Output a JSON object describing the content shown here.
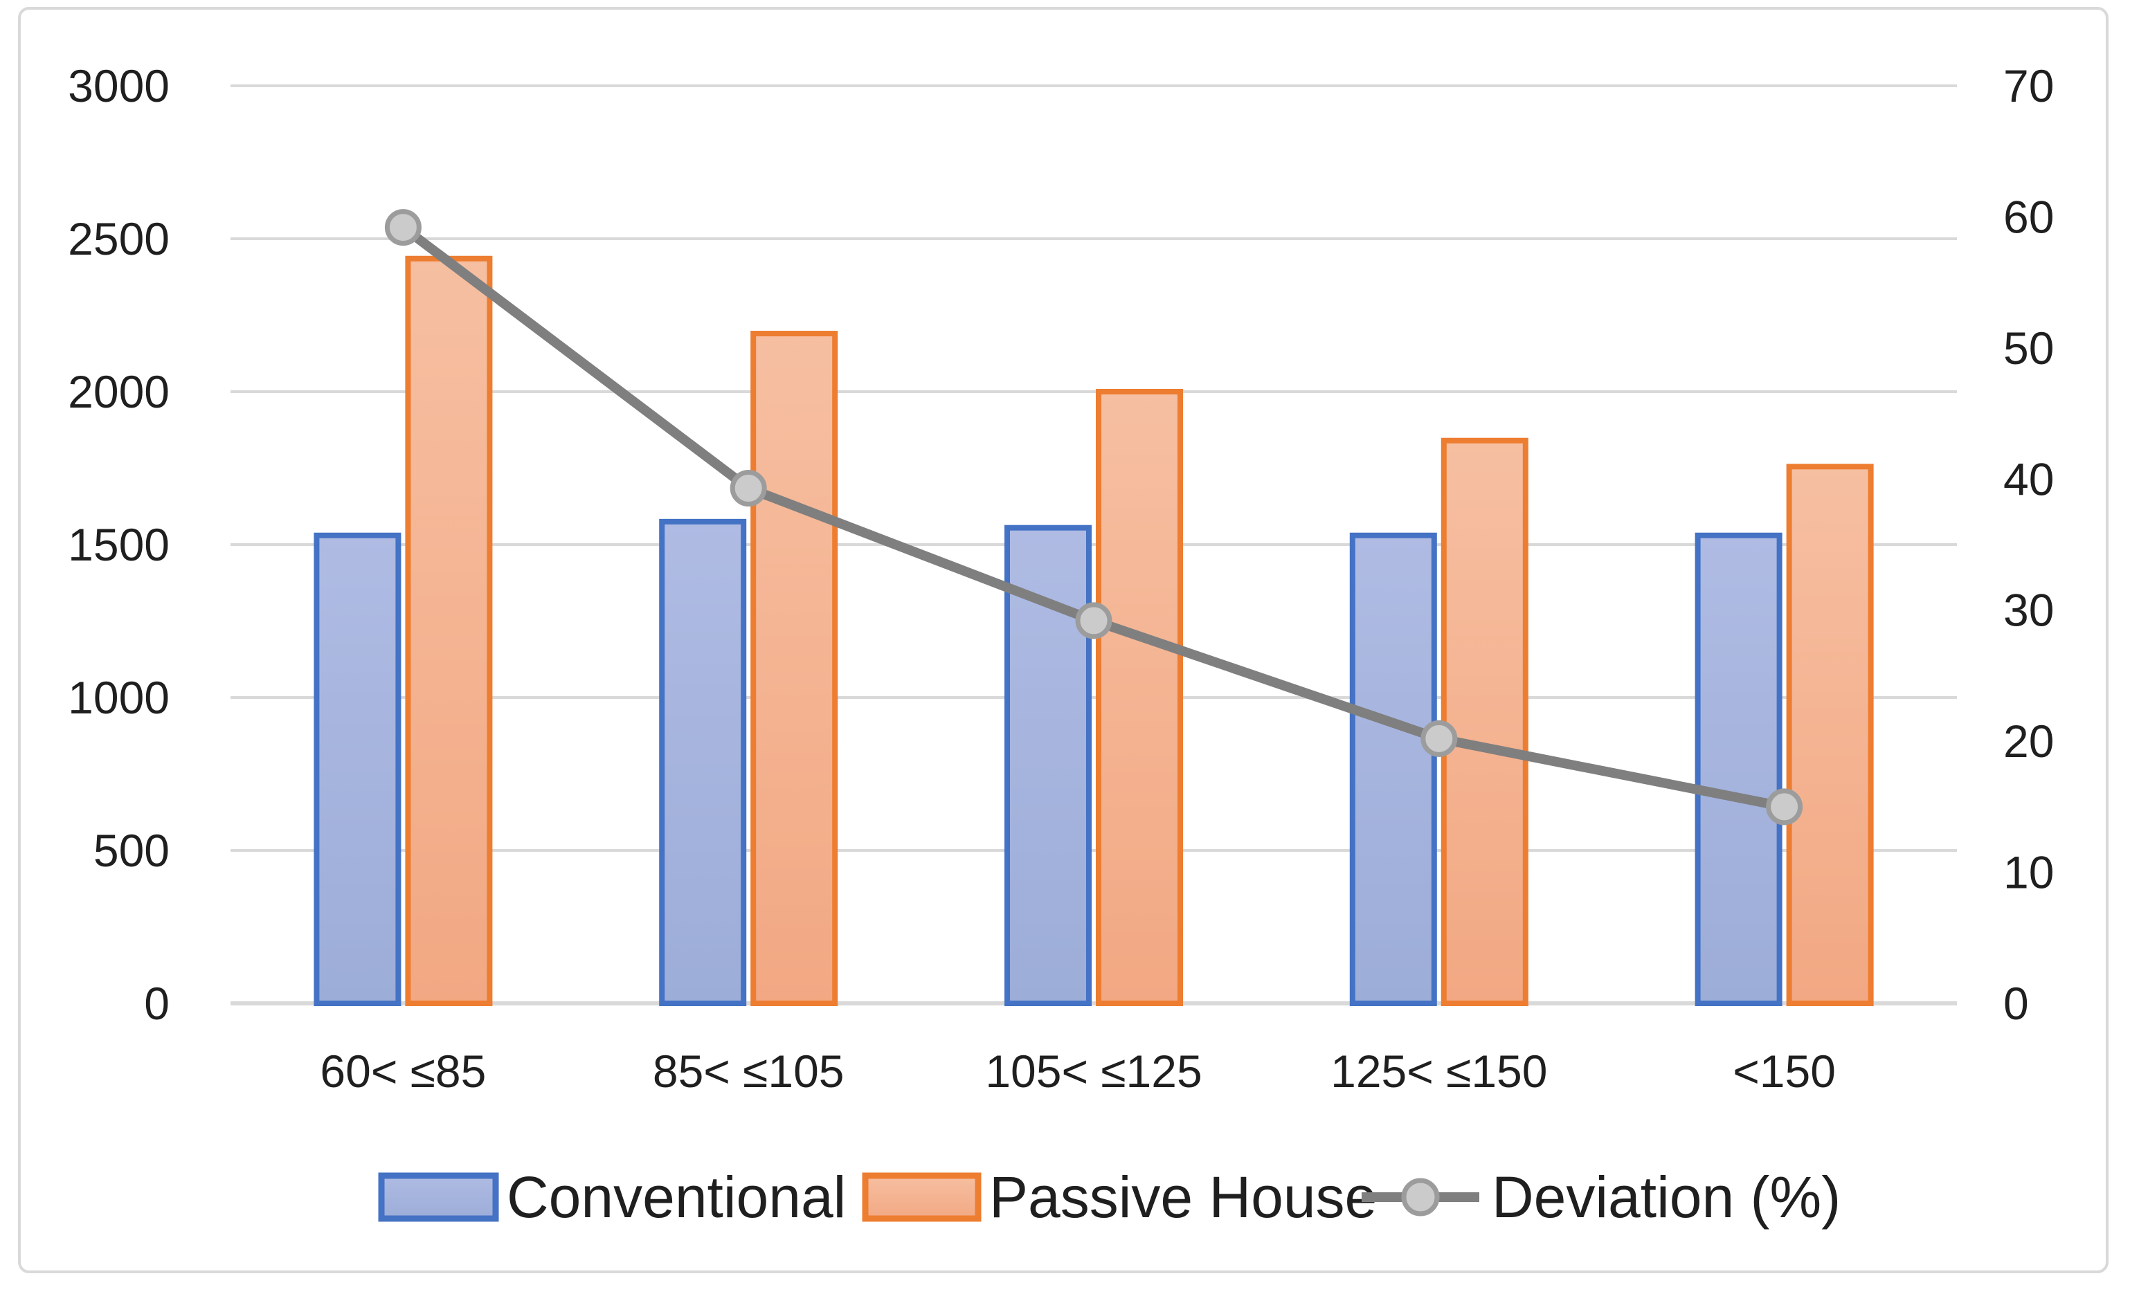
{
  "figure": {
    "background": "#FFFFFF",
    "frame_border_color": "#D9D9D9"
  },
  "chart_data": {
    "type": "combo-bar-line",
    "title": "",
    "categories": [
      "60< ≤85",
      "85< ≤105",
      "105< ≤125",
      "125< ≤150",
      "<150"
    ],
    "series": [
      {
        "name": "Conventional",
        "chart_type": "bar",
        "axis": "left",
        "values": [
          1530,
          1575,
          1555,
          1530,
          1530
        ],
        "border_color": "#4472C4",
        "fill_top": "#AFBBE3",
        "fill_bottom": "#9CADD8"
      },
      {
        "name": "Passive House",
        "chart_type": "bar",
        "axis": "left",
        "values": [
          2435,
          2190,
          2000,
          1840,
          1755
        ],
        "border_color": "#ED7D31",
        "fill_top": "#F6BFA1",
        "fill_bottom": "#F2A883"
      },
      {
        "name": "Deviation (%)",
        "chart_type": "line",
        "axis": "right",
        "values": [
          59.2,
          39.3,
          29.2,
          20.2,
          15.0
        ],
        "line_color": "#7F7F7F",
        "marker_fill": "#CBCBCB",
        "marker_border": "#9C9C9C"
      }
    ],
    "left_axis": {
      "min": 0,
      "max": 3000,
      "step": 500,
      "tick_labels": [
        "0",
        "500",
        "1000",
        "1500",
        "2000",
        "2500",
        "3000"
      ]
    },
    "right_axis": {
      "min": 0,
      "max": 70,
      "step": 10,
      "tick_labels": [
        "0",
        "10",
        "20",
        "30",
        "40",
        "50",
        "60",
        "70"
      ]
    },
    "gridlines": {
      "show": true,
      "color": "#D9D9D9"
    },
    "legend": {
      "position": "bottom",
      "items": [
        "Conventional",
        "Passive House",
        "Deviation (%)"
      ]
    },
    "text_color": "#1F1F1F"
  }
}
